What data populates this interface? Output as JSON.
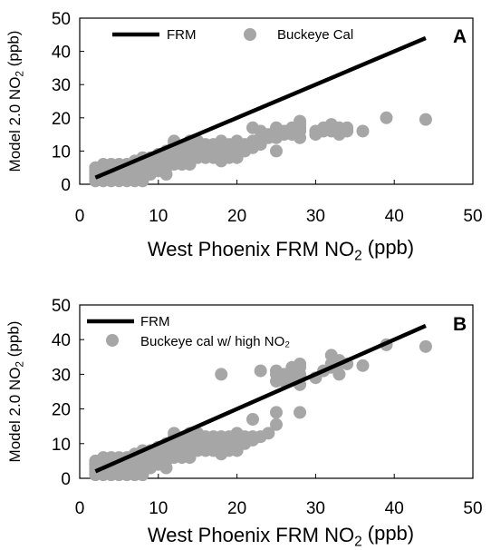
{
  "chart_data": [
    {
      "type": "scatter",
      "panel_label": "A",
      "xlabel": {
        "main": "West Phoenix FRM NO",
        "sub": "2",
        "tail": " (ppb)"
      },
      "ylabel": {
        "main": "Model 2.0 NO",
        "sub": "2",
        "tail": " (ppb)"
      },
      "xlim": [
        0,
        50
      ],
      "ylim": [
        0,
        50
      ],
      "x_ticks": [
        "0",
        "10",
        "20",
        "30",
        "40",
        "50"
      ],
      "y_ticks": [
        "0",
        "10",
        "20",
        "30",
        "40",
        "50"
      ],
      "grid": false,
      "legend_placement": "top",
      "legend": {
        "line": "FRM",
        "points": "Buckeye Cal"
      },
      "line": {
        "name": "FRM",
        "x": [
          2,
          44
        ],
        "y": [
          2,
          44
        ],
        "color": "#000000"
      },
      "points_color": "#a6a6a6",
      "points": [
        [
          2,
          1
        ],
        [
          2,
          2
        ],
        [
          2,
          3
        ],
        [
          2,
          4
        ],
        [
          2,
          5
        ],
        [
          2.5,
          2
        ],
        [
          2.5,
          4
        ],
        [
          3,
          1
        ],
        [
          3,
          2
        ],
        [
          3,
          3
        ],
        [
          3,
          4
        ],
        [
          3,
          5
        ],
        [
          3,
          6
        ],
        [
          3.5,
          2
        ],
        [
          3.5,
          5
        ],
        [
          4,
          1
        ],
        [
          4,
          2
        ],
        [
          4,
          3
        ],
        [
          4,
          4
        ],
        [
          4,
          5
        ],
        [
          4,
          6
        ],
        [
          4.5,
          3
        ],
        [
          5,
          1
        ],
        [
          5,
          2
        ],
        [
          5,
          3
        ],
        [
          5,
          4
        ],
        [
          5,
          5
        ],
        [
          5,
          6
        ],
        [
          5.5,
          2
        ],
        [
          5.5,
          4
        ],
        [
          6,
          1
        ],
        [
          6,
          2
        ],
        [
          6,
          3
        ],
        [
          6,
          4
        ],
        [
          6,
          5
        ],
        [
          6,
          6
        ],
        [
          6.5,
          3
        ],
        [
          7,
          1
        ],
        [
          7,
          2
        ],
        [
          7,
          3
        ],
        [
          7,
          4
        ],
        [
          7,
          5
        ],
        [
          7,
          6
        ],
        [
          7,
          7
        ],
        [
          7.5,
          2
        ],
        [
          8,
          1
        ],
        [
          8,
          3
        ],
        [
          8,
          4
        ],
        [
          8,
          5
        ],
        [
          8,
          6
        ],
        [
          8,
          7
        ],
        [
          8,
          8
        ],
        [
          8.5,
          4
        ],
        [
          8.5,
          6
        ],
        [
          9,
          3
        ],
        [
          9,
          4
        ],
        [
          9,
          5
        ],
        [
          9,
          6
        ],
        [
          9,
          7
        ],
        [
          9,
          8
        ],
        [
          9.5,
          5
        ],
        [
          9.5,
          7
        ],
        [
          10,
          4
        ],
        [
          10,
          5
        ],
        [
          10,
          6
        ],
        [
          10,
          7
        ],
        [
          10,
          8
        ],
        [
          10,
          9
        ],
        [
          10.5,
          6
        ],
        [
          10.5,
          8
        ],
        [
          11,
          3
        ],
        [
          11,
          5
        ],
        [
          11,
          6
        ],
        [
          11,
          7
        ],
        [
          11,
          8
        ],
        [
          11,
          9
        ],
        [
          11,
          10
        ],
        [
          11.5,
          7
        ],
        [
          11.5,
          9
        ],
        [
          12,
          6
        ],
        [
          12,
          7
        ],
        [
          12,
          8
        ],
        [
          12,
          9
        ],
        [
          12,
          10
        ],
        [
          12,
          11
        ],
        [
          12,
          12
        ],
        [
          12,
          13
        ],
        [
          12.5,
          8
        ],
        [
          12.5,
          10
        ],
        [
          13,
          6
        ],
        [
          13,
          7
        ],
        [
          13,
          8
        ],
        [
          13,
          9
        ],
        [
          13,
          10
        ],
        [
          13,
          11
        ],
        [
          13.5,
          8
        ],
        [
          13.5,
          11
        ],
        [
          14,
          6
        ],
        [
          14,
          8
        ],
        [
          14,
          9
        ],
        [
          14,
          10
        ],
        [
          14,
          11
        ],
        [
          14,
          12
        ],
        [
          14,
          13
        ],
        [
          14.5,
          9
        ],
        [
          15,
          8
        ],
        [
          15,
          9
        ],
        [
          15,
          10
        ],
        [
          15,
          11
        ],
        [
          15,
          12
        ],
        [
          15,
          13
        ],
        [
          15.5,
          10
        ],
        [
          16,
          8
        ],
        [
          16,
          9
        ],
        [
          16,
          10
        ],
        [
          16,
          11
        ],
        [
          16,
          12
        ],
        [
          16.5,
          11
        ],
        [
          17,
          8
        ],
        [
          17,
          9
        ],
        [
          17,
          10
        ],
        [
          17,
          11
        ],
        [
          17,
          12
        ],
        [
          17.5,
          10
        ],
        [
          18,
          7
        ],
        [
          18,
          8
        ],
        [
          18,
          9
        ],
        [
          18,
          10
        ],
        [
          18,
          11
        ],
        [
          18,
          12
        ],
        [
          18,
          13
        ],
        [
          18.5,
          9
        ],
        [
          19,
          8
        ],
        [
          19,
          9
        ],
        [
          19,
          10
        ],
        [
          19,
          11
        ],
        [
          19,
          12
        ],
        [
          20,
          8
        ],
        [
          20,
          10
        ],
        [
          20,
          11
        ],
        [
          20,
          12
        ],
        [
          20,
          13
        ],
        [
          21,
          10
        ],
        [
          21,
          11
        ],
        [
          21,
          12
        ],
        [
          22,
          11
        ],
        [
          22,
          12
        ],
        [
          22,
          13
        ],
        [
          22,
          17
        ],
        [
          23,
          12
        ],
        [
          23,
          14
        ],
        [
          23,
          16
        ],
        [
          24,
          14
        ],
        [
          24,
          15
        ],
        [
          25,
          10
        ],
        [
          25,
          14
        ],
        [
          25,
          15
        ],
        [
          25,
          16
        ],
        [
          25,
          17
        ],
        [
          26,
          15
        ],
        [
          26,
          16
        ],
        [
          27,
          15
        ],
        [
          27,
          16
        ],
        [
          27,
          17
        ],
        [
          28,
          14
        ],
        [
          28,
          16
        ],
        [
          28,
          17
        ],
        [
          28,
          18
        ],
        [
          28,
          19
        ],
        [
          30,
          15
        ],
        [
          30,
          16
        ],
        [
          31,
          16
        ],
        [
          31,
          17
        ],
        [
          32,
          16
        ],
        [
          32,
          17
        ],
        [
          32,
          18
        ],
        [
          33,
          15
        ],
        [
          33,
          16
        ],
        [
          33,
          17
        ],
        [
          34,
          16
        ],
        [
          34,
          17
        ],
        [
          36,
          16
        ],
        [
          39,
          20
        ],
        [
          44,
          19.5
        ]
      ]
    },
    {
      "type": "scatter",
      "panel_label": "B",
      "xlabel": {
        "main": "West Phoenix FRM NO",
        "sub": "2",
        "tail": " (ppb)"
      },
      "ylabel": {
        "main": "Model 2.0 NO",
        "sub": "2",
        "tail": " (ppb)"
      },
      "xlim": [
        0,
        50
      ],
      "ylim": [
        0,
        50
      ],
      "x_ticks": [
        "0",
        "10",
        "20",
        "30",
        "40",
        "50"
      ],
      "y_ticks": [
        "0",
        "10",
        "20",
        "30",
        "40",
        "50"
      ],
      "grid": false,
      "legend_placement": "top-left",
      "legend": {
        "line": "FRM",
        "points": "Buckeye cal w/ high NO₂"
      },
      "line": {
        "name": "FRM",
        "x": [
          2,
          44
        ],
        "y": [
          2,
          44
        ],
        "color": "#000000"
      },
      "points_color": "#a6a6a6",
      "points": [
        [
          2,
          1
        ],
        [
          2,
          2
        ],
        [
          2,
          3
        ],
        [
          2,
          4
        ],
        [
          2,
          5
        ],
        [
          2.5,
          2
        ],
        [
          2.5,
          4
        ],
        [
          3,
          1
        ],
        [
          3,
          2
        ],
        [
          3,
          3
        ],
        [
          3,
          4
        ],
        [
          3,
          5
        ],
        [
          3,
          6
        ],
        [
          3.5,
          2
        ],
        [
          3.5,
          5
        ],
        [
          4,
          1
        ],
        [
          4,
          2
        ],
        [
          4,
          3
        ],
        [
          4,
          4
        ],
        [
          4,
          5
        ],
        [
          4,
          6
        ],
        [
          4.5,
          3
        ],
        [
          5,
          1
        ],
        [
          5,
          2
        ],
        [
          5,
          3
        ],
        [
          5,
          4
        ],
        [
          5,
          5
        ],
        [
          5,
          6
        ],
        [
          5.5,
          2
        ],
        [
          5.5,
          4
        ],
        [
          6,
          1
        ],
        [
          6,
          2
        ],
        [
          6,
          3
        ],
        [
          6,
          4
        ],
        [
          6,
          5
        ],
        [
          6,
          6
        ],
        [
          6.5,
          3
        ],
        [
          7,
          1
        ],
        [
          7,
          2
        ],
        [
          7,
          3
        ],
        [
          7,
          4
        ],
        [
          7,
          5
        ],
        [
          7,
          6
        ],
        [
          7,
          7
        ],
        [
          7.5,
          2
        ],
        [
          8,
          1
        ],
        [
          8,
          3
        ],
        [
          8,
          4
        ],
        [
          8,
          5
        ],
        [
          8,
          6
        ],
        [
          8,
          7
        ],
        [
          8,
          8
        ],
        [
          8.5,
          4
        ],
        [
          8.5,
          6
        ],
        [
          9,
          3
        ],
        [
          9,
          4
        ],
        [
          9,
          5
        ],
        [
          9,
          6
        ],
        [
          9,
          7
        ],
        [
          9,
          8
        ],
        [
          9.5,
          5
        ],
        [
          9.5,
          7
        ],
        [
          10,
          4
        ],
        [
          10,
          5
        ],
        [
          10,
          6
        ],
        [
          10,
          7
        ],
        [
          10,
          8
        ],
        [
          10,
          9
        ],
        [
          10.5,
          6
        ],
        [
          10.5,
          8
        ],
        [
          11,
          3
        ],
        [
          11,
          5
        ],
        [
          11,
          6
        ],
        [
          11,
          7
        ],
        [
          11,
          8
        ],
        [
          11,
          9
        ],
        [
          11,
          10
        ],
        [
          11.5,
          7
        ],
        [
          11.5,
          9
        ],
        [
          12,
          6
        ],
        [
          12,
          7
        ],
        [
          12,
          8
        ],
        [
          12,
          9
        ],
        [
          12,
          10
        ],
        [
          12,
          11
        ],
        [
          12,
          12
        ],
        [
          12,
          13
        ],
        [
          12.5,
          8
        ],
        [
          12.5,
          10
        ],
        [
          13,
          6
        ],
        [
          13,
          7
        ],
        [
          13,
          8
        ],
        [
          13,
          9
        ],
        [
          13,
          10
        ],
        [
          13,
          11
        ],
        [
          13.5,
          8
        ],
        [
          13.5,
          11
        ],
        [
          14,
          6
        ],
        [
          14,
          8
        ],
        [
          14,
          9
        ],
        [
          14,
          10
        ],
        [
          14,
          11
        ],
        [
          14,
          12
        ],
        [
          14,
          13
        ],
        [
          14.5,
          9
        ],
        [
          15,
          8
        ],
        [
          15,
          9
        ],
        [
          15,
          10
        ],
        [
          15,
          11
        ],
        [
          15,
          12
        ],
        [
          15,
          13
        ],
        [
          15.5,
          10
        ],
        [
          16,
          8
        ],
        [
          16,
          9
        ],
        [
          16,
          10
        ],
        [
          16,
          11
        ],
        [
          16,
          12
        ],
        [
          16.5,
          11
        ],
        [
          17,
          8
        ],
        [
          17,
          9
        ],
        [
          17,
          10
        ],
        [
          17,
          11
        ],
        [
          17,
          12
        ],
        [
          17.5,
          10
        ],
        [
          18,
          7
        ],
        [
          18,
          8
        ],
        [
          18,
          9
        ],
        [
          18,
          10
        ],
        [
          18,
          11
        ],
        [
          18,
          12
        ],
        [
          18,
          30
        ],
        [
          18.5,
          9
        ],
        [
          19,
          8
        ],
        [
          19,
          9
        ],
        [
          19,
          10
        ],
        [
          19,
          11
        ],
        [
          19,
          12
        ],
        [
          20,
          8
        ],
        [
          20,
          10
        ],
        [
          20,
          11
        ],
        [
          20,
          12
        ],
        [
          20,
          13
        ],
        [
          21,
          10
        ],
        [
          21,
          11
        ],
        [
          21,
          12
        ],
        [
          22,
          11
        ],
        [
          22,
          12
        ],
        [
          22,
          17
        ],
        [
          23,
          12
        ],
        [
          23,
          31
        ],
        [
          24,
          13
        ],
        [
          25,
          15.5
        ],
        [
          25,
          19
        ],
        [
          25,
          28
        ],
        [
          25,
          30
        ],
        [
          25,
          31
        ],
        [
          26,
          28
        ],
        [
          26,
          30
        ],
        [
          27,
          29
        ],
        [
          27,
          31
        ],
        [
          27,
          32
        ],
        [
          28,
          19
        ],
        [
          28,
          27
        ],
        [
          28,
          30
        ],
        [
          28,
          32
        ],
        [
          28,
          33
        ],
        [
          30,
          29
        ],
        [
          31,
          31
        ],
        [
          32,
          32
        ],
        [
          32,
          33
        ],
        [
          32,
          35.5
        ],
        [
          33,
          30
        ],
        [
          33,
          33
        ],
        [
          33,
          34
        ],
        [
          34,
          33
        ],
        [
          36,
          32.5
        ],
        [
          39,
          38.5
        ],
        [
          44,
          38
        ]
      ]
    }
  ]
}
